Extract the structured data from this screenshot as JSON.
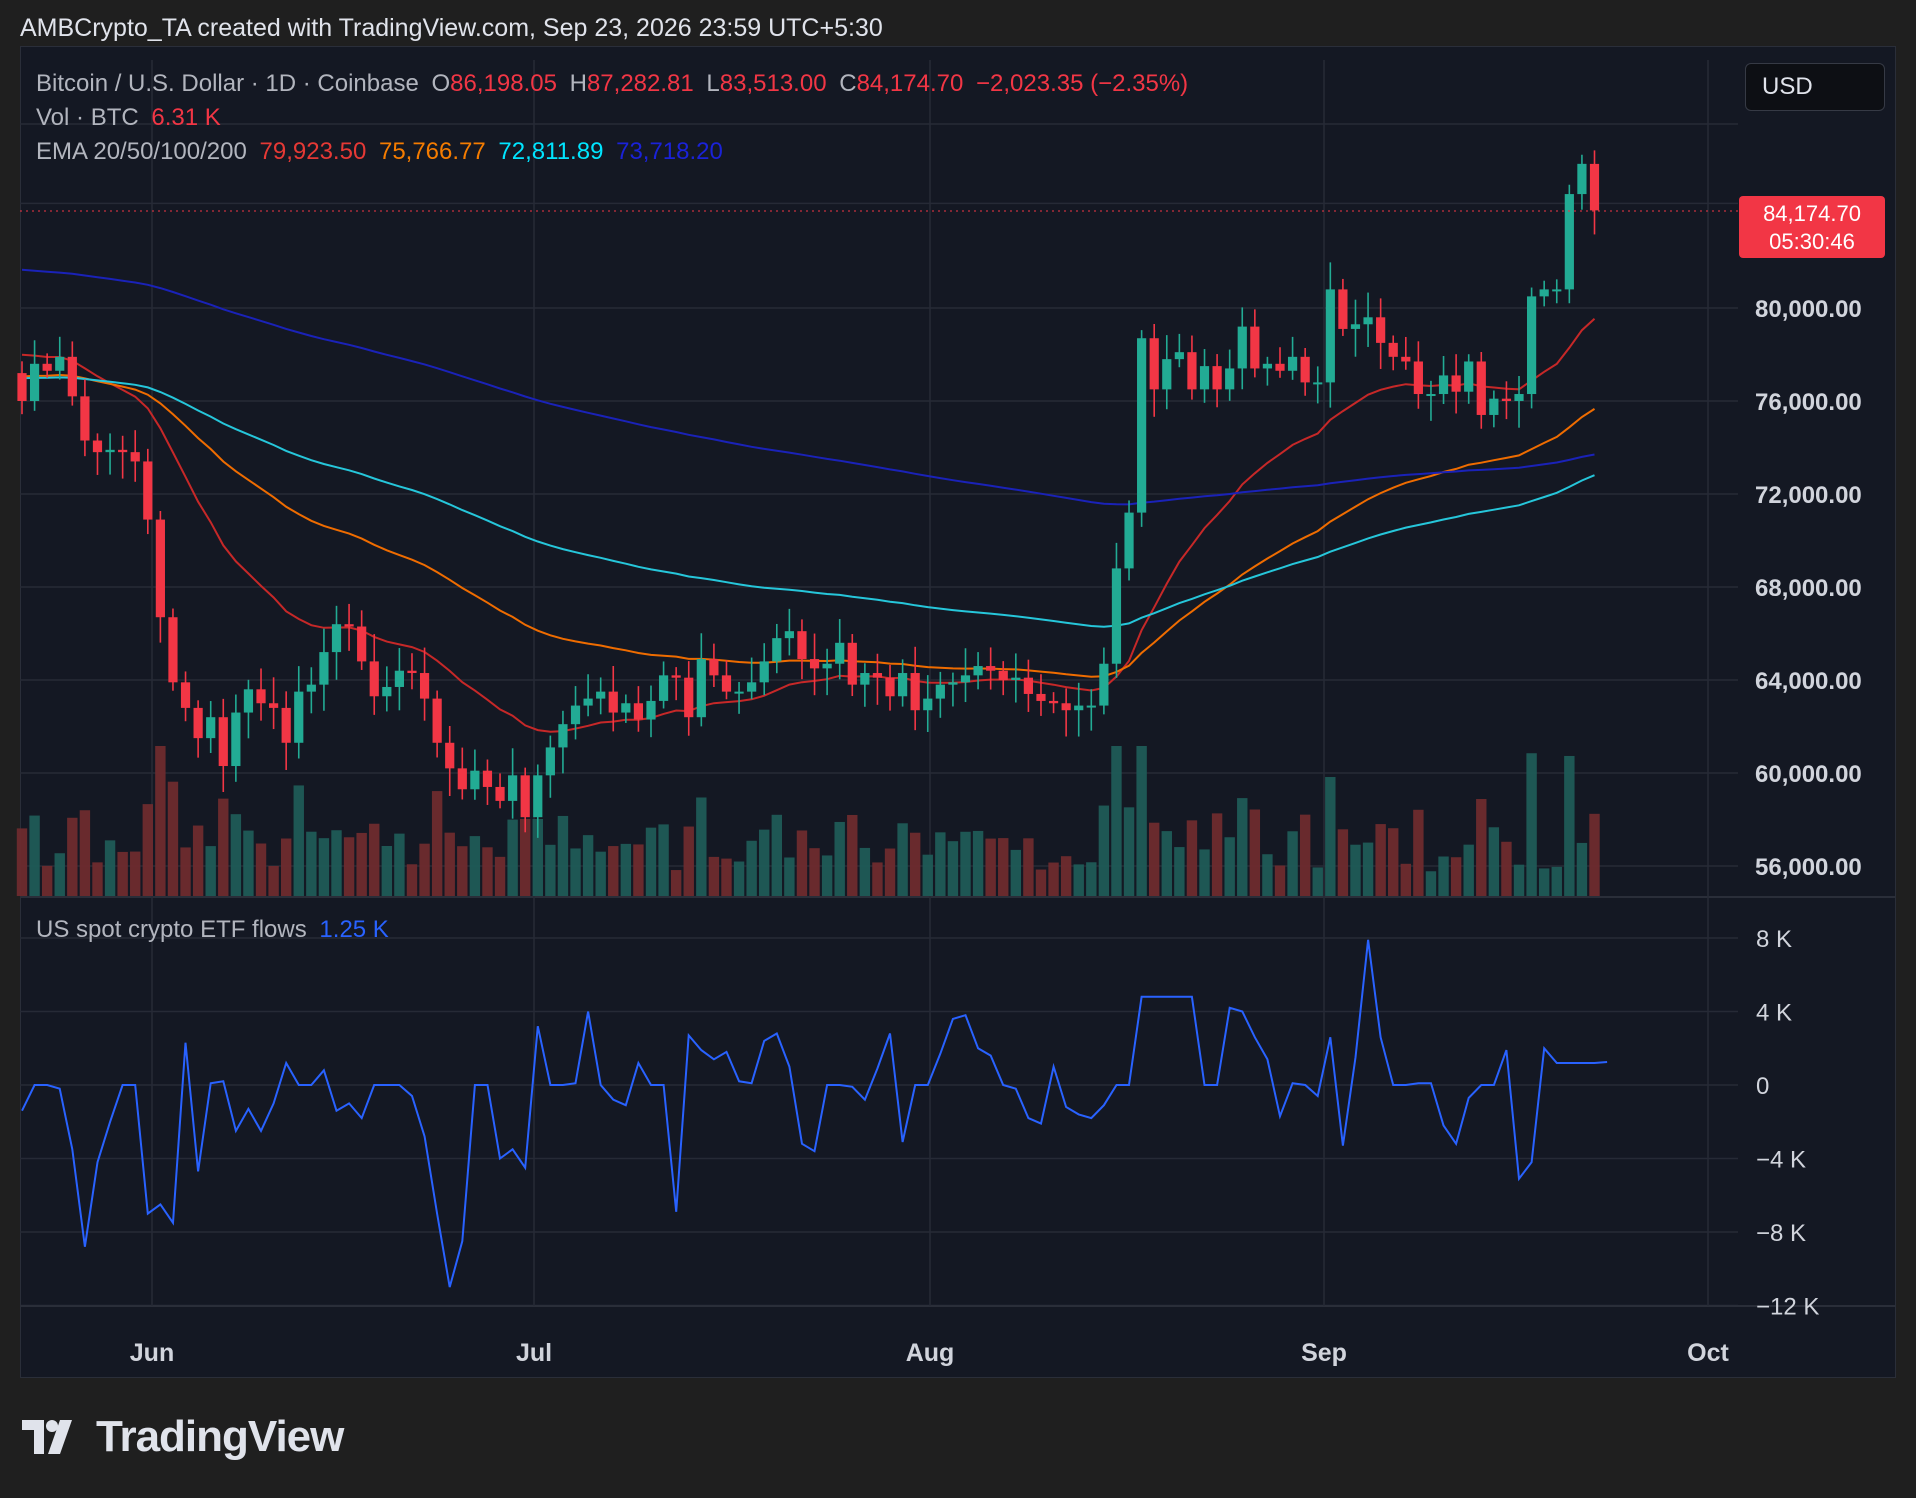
{
  "header": {
    "text": "AMBCrypto_TA created with TradingView.com, Sep 23, 2026 23:59 UTC+5:30"
  },
  "legend": {
    "symbol": "Bitcoin / U.S. Dollar · 1D · Coinbase",
    "o_label": "O",
    "o_value": "86,198.05",
    "h_label": "H",
    "h_value": "87,282.81",
    "l_label": "L",
    "l_value": "83,513.00",
    "c_label": "C",
    "c_value": "84,174.70",
    "change": "−2,023.35 (−2.35%)",
    "vol_label": "Vol · BTC",
    "vol_value": "6.31 K",
    "ema_label": "EMA 20/50/100/200",
    "ema20": "79,923.50",
    "ema50": "75,766.77",
    "ema100": "72,811.89",
    "ema200": "73,718.20",
    "etf_label": "US spot crypto ETF flows",
    "etf_value": "1.25 K"
  },
  "currency_button": "USD",
  "last_price": {
    "price": "84,174.70",
    "countdown": "05:30:46"
  },
  "colors": {
    "up": "#26a69a",
    "down": "#ef5350",
    "ema20": "#d32f2f",
    "ema50": "#f57c00",
    "ema100": "#26c6da",
    "ema200": "#1a22b8",
    "etf": "#2962ff",
    "grid": "#262a36",
    "text": "#b2b5be"
  },
  "footer": {
    "brand": "TradingView",
    "logo_icon": "tradingview-logo-icon"
  },
  "chart_data": [
    {
      "type": "candlestick",
      "title": "Bitcoin / U.S. Dollar · 1D · Coinbase",
      "x_labels": [
        "Jun",
        "Jul",
        "Aug",
        "Sep",
        "Oct"
      ],
      "y_ticks": [
        "80,000.00",
        "76,000.00",
        "72,000.00",
        "68,000.00",
        "64,000.00",
        "60,000.00",
        "56,000.00"
      ],
      "ylim": [
        55000,
        86500
      ],
      "x_range_days": [
        "May 23",
        "Oct 1"
      ],
      "close": [
        76000,
        77600,
        77300,
        77900,
        76200,
        74300,
        73800,
        73900,
        73800,
        73400,
        70900,
        66700,
        63900,
        62800,
        61500,
        62400,
        60300,
        62600,
        63600,
        63000,
        62800,
        61300,
        63500,
        63800,
        65200,
        66400,
        66300,
        64800,
        63300,
        63700,
        64400,
        64300,
        63200,
        61300,
        60200,
        59300,
        60100,
        59400,
        58800,
        59900,
        58100,
        59900,
        61100,
        62100,
        62900,
        63200,
        63500,
        62600,
        63000,
        62300,
        63100,
        64200,
        64100,
        62400,
        64900,
        64200,
        63500,
        63500,
        63900,
        64800,
        65800,
        66100,
        64900,
        64500,
        64700,
        65600,
        63800,
        64300,
        64100,
        63300,
        64300,
        62700,
        63200,
        63800,
        63900,
        64200,
        64600,
        64400,
        64000,
        64100,
        63400,
        63100,
        63000,
        62700,
        62900,
        62900,
        64700,
        68800,
        71200,
        78700,
        76500,
        77800,
        78100,
        76500,
        77500,
        76500,
        77400,
        79200,
        77400,
        77600,
        77300,
        77900,
        76800,
        76800,
        80800,
        79100,
        79300,
        79600,
        78500,
        77900,
        77700,
        76300,
        76300,
        77100,
        76400,
        77700,
        75400,
        76100,
        76000,
        76300,
        80500,
        80800,
        80800,
        84900,
        86200,
        84200
      ],
      "ema": {
        "20": "79,923.50",
        "50": "75,766.77",
        "100": "72,811.89",
        "200": "73,718.20"
      }
    },
    {
      "type": "line",
      "title": "US spot crypto ETF flows",
      "y_ticks": [
        "8 K",
        "4 K",
        "0",
        "−4 K",
        "−8 K",
        "−12 K"
      ],
      "ylim": [
        -12000,
        8000
      ],
      "values": [
        -1400,
        0,
        0,
        -200,
        -3500,
        -8800,
        -4200,
        -2000,
        0,
        0,
        -7000,
        -6500,
        -7500,
        2300,
        -4700,
        100,
        200,
        -2500,
        -1300,
        -2500,
        -1000,
        1200,
        0,
        0,
        800,
        -1400,
        -1000,
        -1800,
        0,
        0,
        0,
        -600,
        -2800,
        -7000,
        -11000,
        -8500,
        0,
        0,
        -4000,
        -3500,
        -4500,
        3200,
        0,
        0,
        100,
        4000,
        0,
        -800,
        -1100,
        1200,
        0,
        0,
        -6900,
        2700,
        1900,
        1400,
        1800,
        200,
        100,
        2400,
        2800,
        1000,
        -3200,
        -3600,
        0,
        0,
        -100,
        -800,
        900,
        2800,
        -3100,
        0,
        0,
        1700,
        3600,
        3800,
        2000,
        1600,
        0,
        -200,
        -1800,
        -2100,
        1000,
        -1200,
        -1600,
        -1800,
        -1100,
        0,
        0,
        4800,
        4800,
        4800,
        4800,
        4800,
        0,
        0,
        4200,
        4000,
        2600,
        1400,
        -1700,
        100,
        0,
        -600,
        2600,
        -3300,
        1500,
        7900,
        2600,
        0,
        0,
        100,
        100,
        -2200,
        -3200,
        -700,
        0,
        0,
        1900,
        -5100,
        -4200,
        2000,
        1200,
        1200,
        1200,
        1200,
        1250
      ]
    }
  ]
}
